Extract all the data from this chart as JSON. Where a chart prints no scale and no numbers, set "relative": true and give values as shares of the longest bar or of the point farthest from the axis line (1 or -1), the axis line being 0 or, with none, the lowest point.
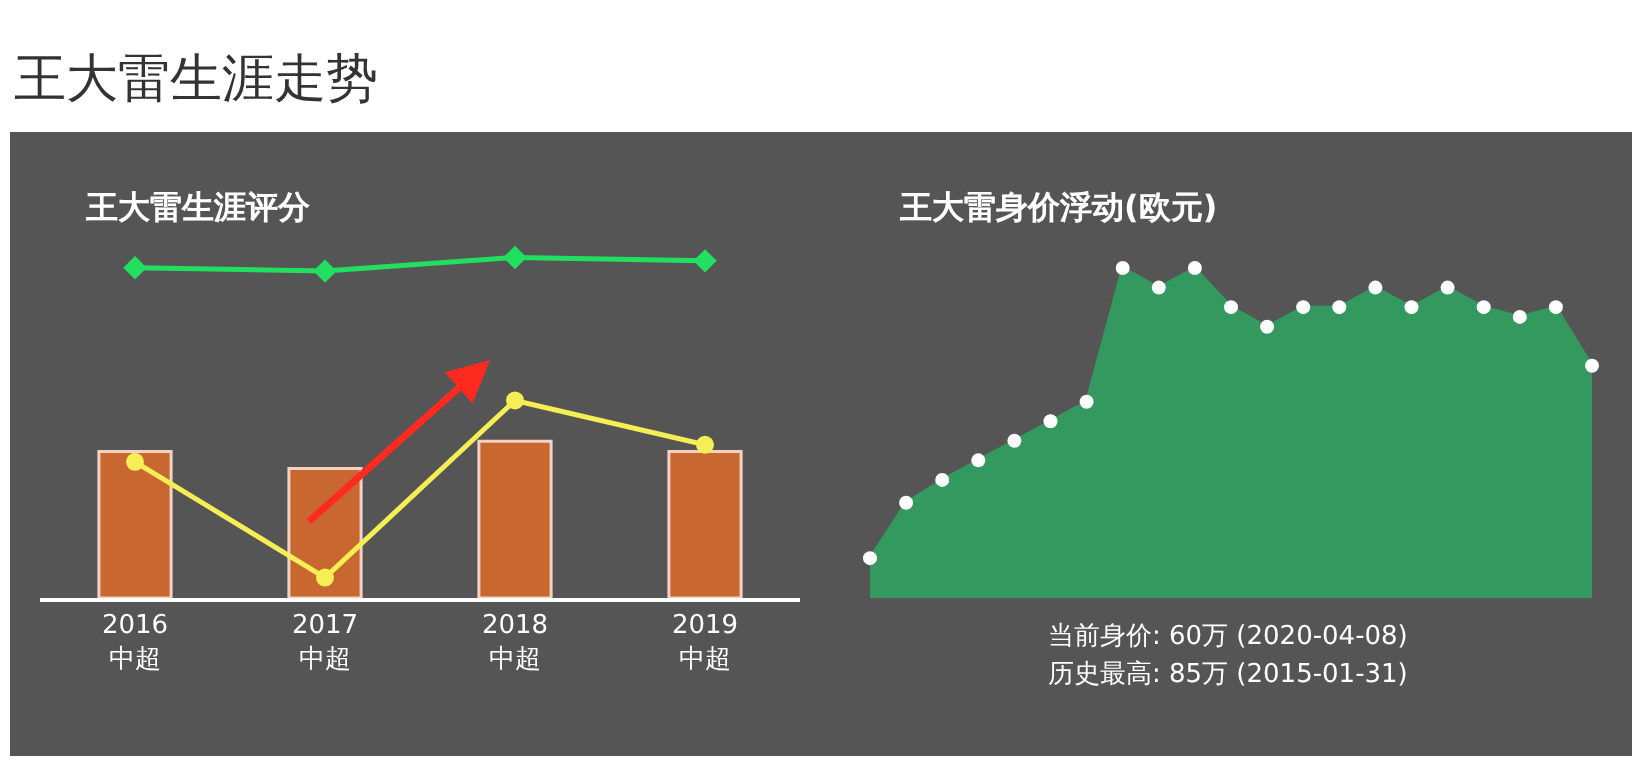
{
  "chart_data": [
    {
      "type": "other",
      "title": "王大雷生涯走势"
    },
    {
      "type": "bar",
      "title": "王大雷生涯评分",
      "relative": true,
      "categories": [
        "2016\n中超",
        "2017\n中超",
        "2018\n中超",
        "2019\n中超"
      ],
      "series": [
        {
          "type": "bar",
          "color": "#c8672f",
          "values": [
            0.43,
            0.38,
            0.46,
            0.43
          ]
        },
        {
          "type": "line",
          "color": "#f5ee55",
          "marker": "circle",
          "line_style": "solid",
          "values": [
            0.4,
            0.06,
            0.58,
            0.45
          ]
        },
        {
          "type": "line",
          "color": "#22e05f",
          "marker": "diamond",
          "line_style": "solid",
          "values": [
            0.97,
            0.96,
            1.0,
            0.99
          ]
        }
      ]
    },
    {
      "type": "area",
      "title": "王大雷身价浮动(欧元)",
      "relative": true,
      "marker": "circle",
      "categories": [
        null,
        null,
        null,
        null,
        null,
        null,
        null,
        null,
        null,
        null,
        null,
        null,
        null,
        null,
        null,
        null,
        null,
        null,
        null,
        null,
        null
      ],
      "series": [
        {
          "color": "#33995f",
          "values": [
            0.11,
            0.28,
            0.35,
            0.41,
            0.47,
            0.53,
            0.59,
            1.0,
            0.94,
            1.0,
            0.88,
            0.82,
            0.88,
            0.88,
            0.94,
            0.88,
            0.94,
            0.88,
            0.85,
            0.88,
            0.7
          ]
        }
      ],
      "annotations": [
        "当前身价: 60万 (2020-04-08)",
        "历史最高: 85万 (2015-01-31)"
      ]
    }
  ]
}
